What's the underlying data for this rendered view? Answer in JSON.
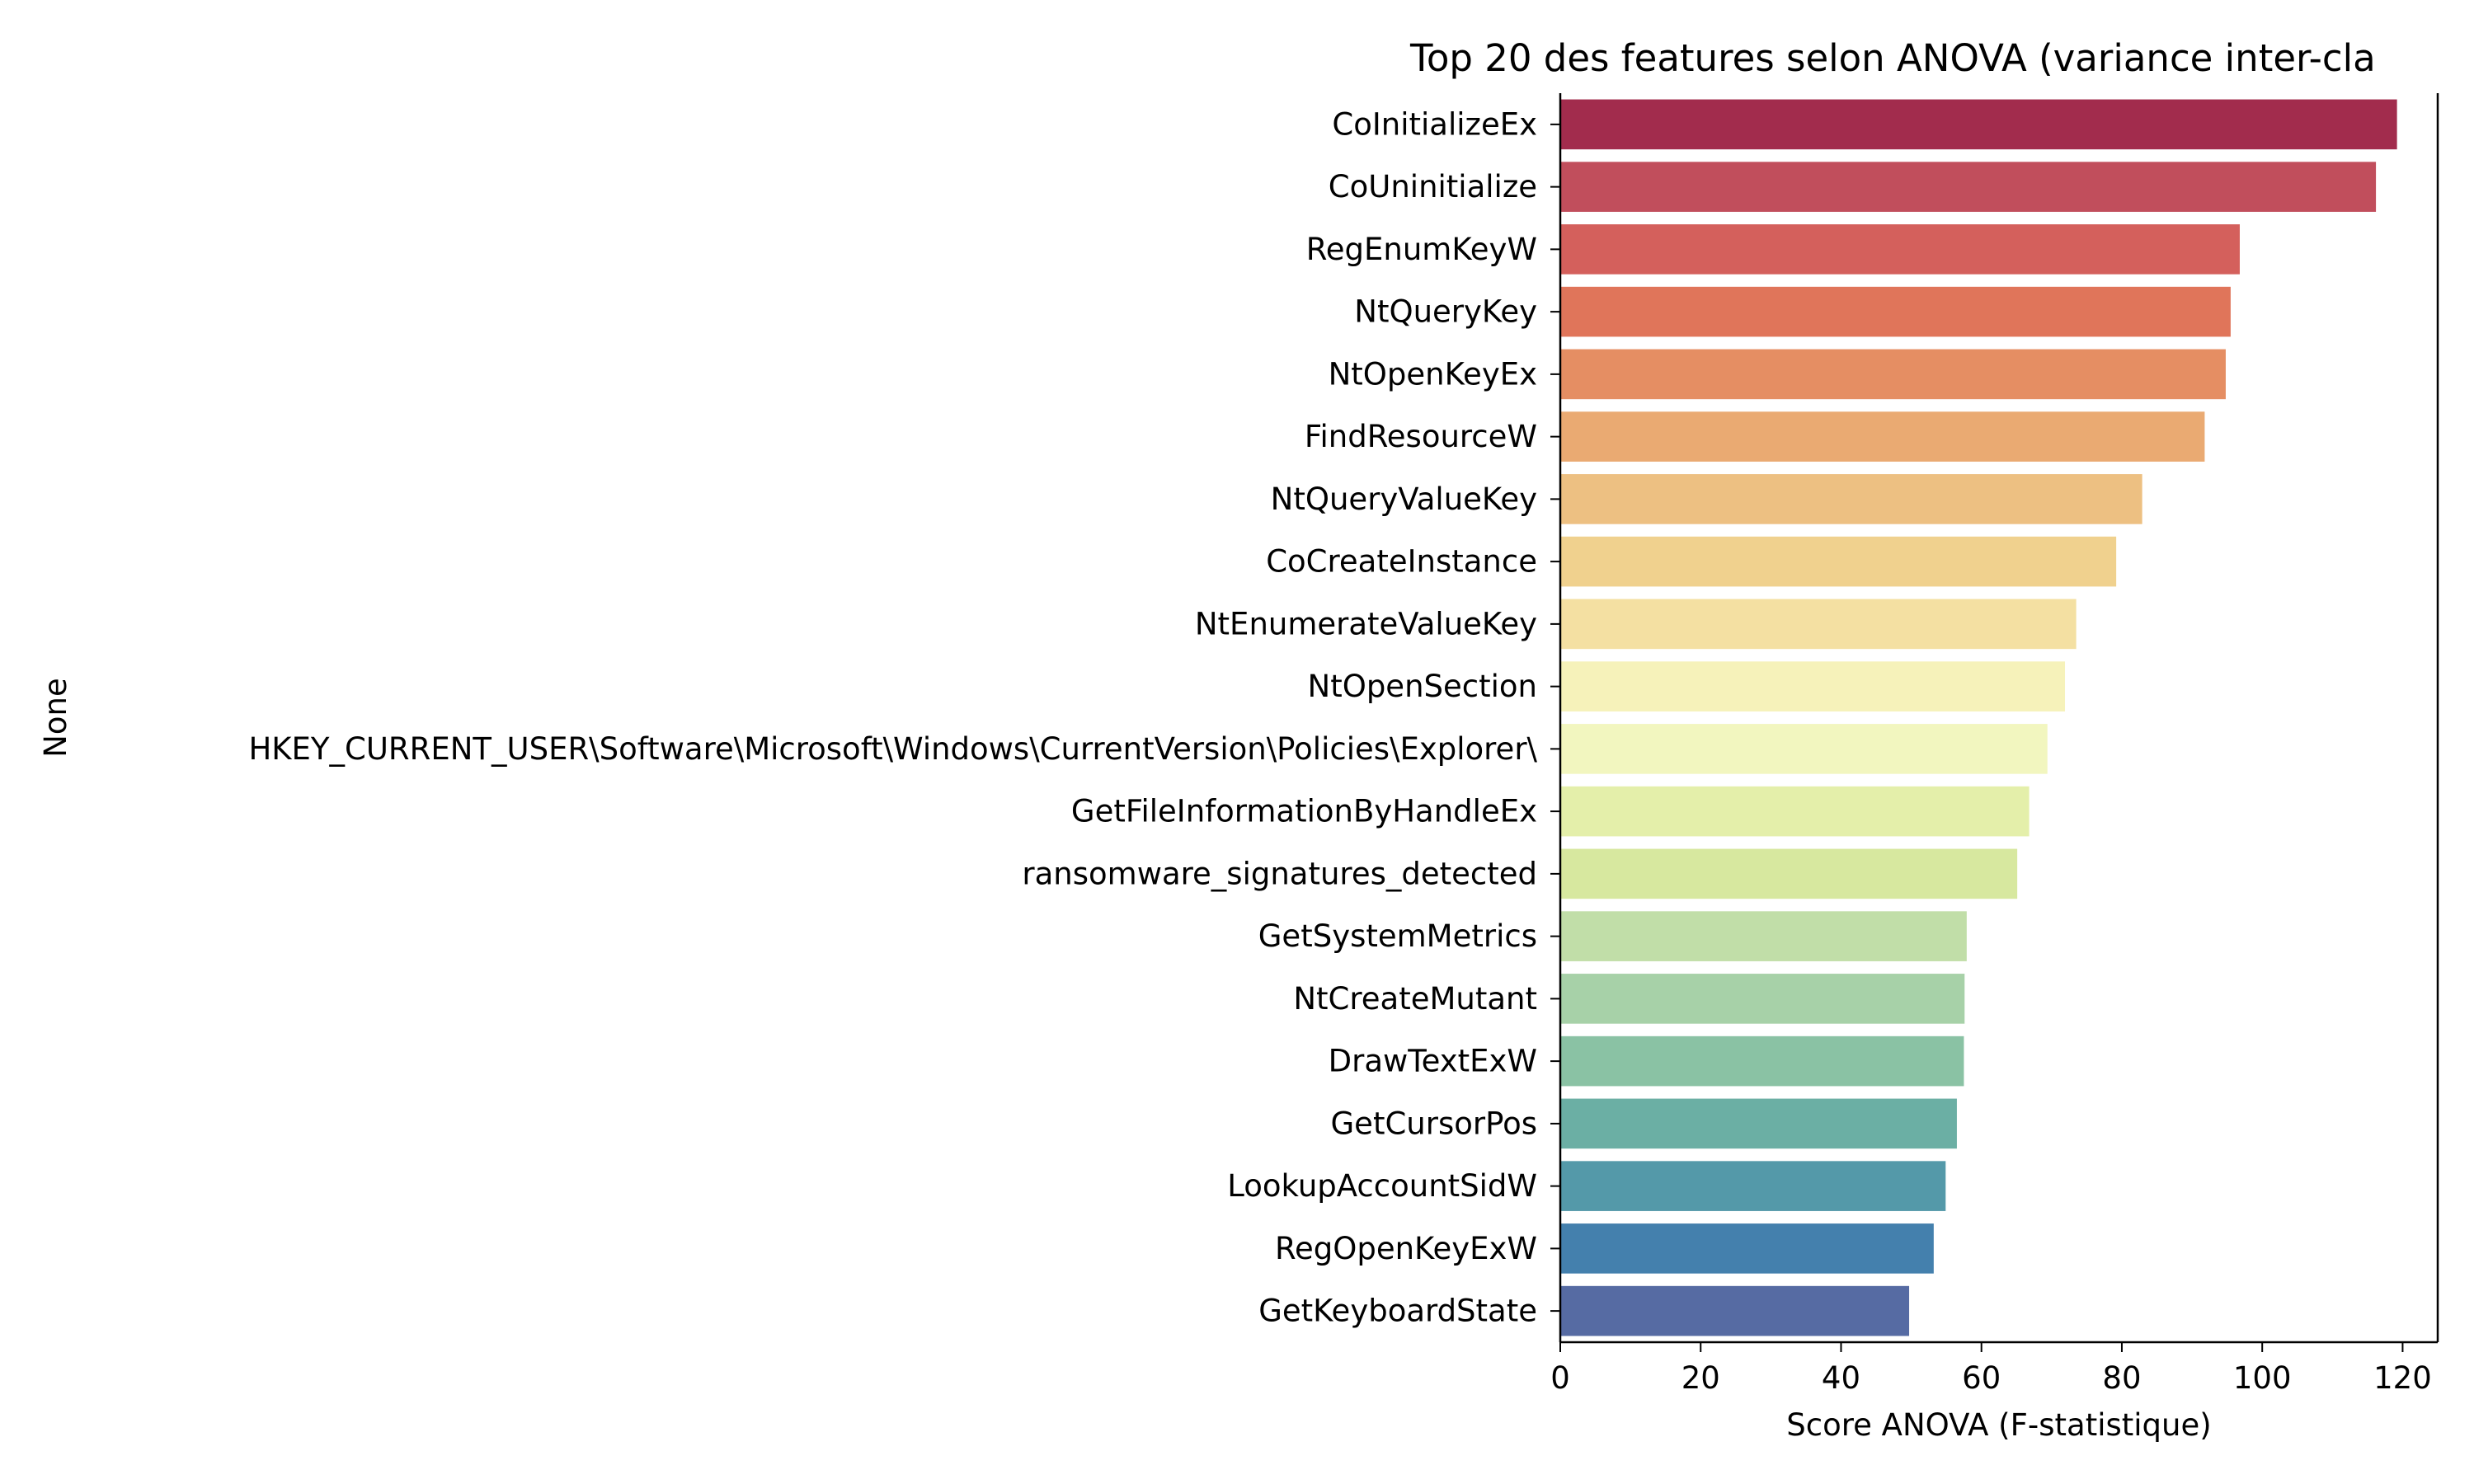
{
  "chart_data": {
    "type": "bar",
    "orientation": "horizontal",
    "title": "Top 20 des features selon ANOVA (variance inter-cla",
    "xlabel": "Score ANOVA (F-statistique)",
    "ylabel": "None",
    "xlim": [
      0,
      125
    ],
    "xticks": [
      0,
      20,
      40,
      60,
      80,
      100,
      120
    ],
    "grid": false,
    "categories": [
      "CoInitializeEx",
      "CoUninitialize",
      "RegEnumKeyW",
      "NtQueryKey",
      "NtOpenKeyEx",
      "FindResourceW",
      "NtQueryValueKey",
      "CoCreateInstance",
      "NtEnumerateValueKey",
      "NtOpenSection",
      "HKEY_CURRENT_USER\\Software\\Microsoft\\Windows\\CurrentVersion\\Policies\\Explorer\\",
      "GetFileInformationByHandleEx",
      "ransomware_signatures_detected",
      "GetSystemMetrics",
      "NtCreateMutant",
      "DrawTextExW",
      "GetCursorPos",
      "LookupAccountSidW",
      "RegOpenKeyExW",
      "GetKeyboardState"
    ],
    "values": [
      119.2,
      116.2,
      96.8,
      95.5,
      94.8,
      91.8,
      82.9,
      79.2,
      73.5,
      71.9,
      69.4,
      66.8,
      65.1,
      57.9,
      57.6,
      57.5,
      56.5,
      54.9,
      53.2,
      49.7
    ],
    "colors": [
      "#a22c4d",
      "#c14e5c",
      "#d4605c",
      "#e0755a",
      "#e58e63",
      "#eaaa72",
      "#edc082",
      "#f0d18e",
      "#f4e0a2",
      "#f6f2ba",
      "#f2f6bf",
      "#e4efaa",
      "#d7e89f",
      "#c1dea8",
      "#a7d1a8",
      "#8ac2a4",
      "#6bafa4",
      "#5499a9",
      "#4480ad",
      "#566ba3"
    ]
  }
}
